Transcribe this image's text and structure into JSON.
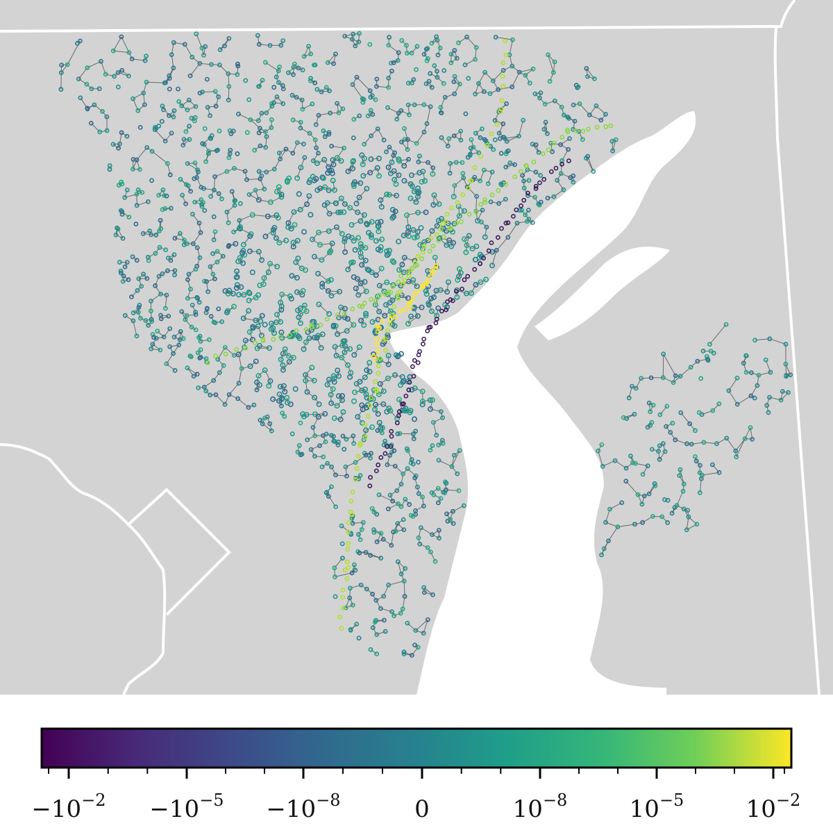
{
  "map": {
    "colors": {
      "land": "#d3d3d3",
      "water": "#ffffff",
      "borders": "#ffffff",
      "edges": "#4d4d4d",
      "low_node": "#440154",
      "mid_node": "#21918c",
      "high_node": "#fde725"
    },
    "regions": [
      "land",
      "water-body",
      "state-border",
      "dc-boundary"
    ],
    "network": {
      "node_color_scale": "viridis",
      "highlight_corridors": 4
    }
  },
  "colorbar": {
    "colormap": "viridis",
    "scale": "symlog",
    "tick_labels": [
      {
        "base": "−10",
        "exp": "−2"
      },
      {
        "base": "−10",
        "exp": "−5"
      },
      {
        "base": "−10",
        "exp": "−8"
      },
      {
        "base": "0",
        "exp": ""
      },
      {
        "base": "10",
        "exp": "−8"
      },
      {
        "base": "10",
        "exp": "−5"
      },
      {
        "base": "10",
        "exp": "−2"
      }
    ],
    "tick_values": [
      "-1e-2",
      "-1e-5",
      "-1e-8",
      "0",
      "1e-8",
      "1e-5",
      "1e-2"
    ]
  }
}
